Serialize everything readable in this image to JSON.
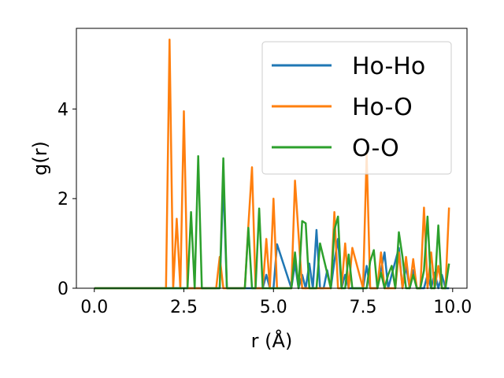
{
  "chart_data": {
    "type": "line",
    "xlabel": "r (Å)",
    "ylabel": "g(r)",
    "xlim": [
      -0.5,
      10.4
    ],
    "ylim": [
      0,
      5.8
    ],
    "xticks": [
      {
        "value": 0.0,
        "label": "0.0"
      },
      {
        "value": 2.5,
        "label": "2.5"
      },
      {
        "value": 5.0,
        "label": "5.0"
      },
      {
        "value": 7.5,
        "label": "7.5"
      },
      {
        "value": 10.0,
        "label": "10.0"
      }
    ],
    "yticks": [
      {
        "value": 0,
        "label": "0"
      },
      {
        "value": 2,
        "label": "2"
      },
      {
        "value": 4,
        "label": "4"
      }
    ],
    "grid": false,
    "legend_position": "top-right",
    "series": [
      {
        "name": "Ho-Ho",
        "color": "#1f77b4",
        "x": [
          0.0,
          3.5,
          3.6,
          3.7,
          4.7,
          4.8,
          4.9,
          5.0,
          5.1,
          5.5,
          5.6,
          5.7,
          5.8,
          5.9,
          6.0,
          6.1,
          6.2,
          6.3,
          6.4,
          6.5,
          6.6,
          6.7,
          6.8,
          6.9,
          7.0,
          7.1,
          7.2,
          7.5,
          7.6,
          7.7,
          7.9,
          8.0,
          8.1,
          8.2,
          8.3,
          8.5,
          8.6,
          8.7,
          8.8,
          8.9,
          9.0,
          9.2,
          9.3,
          9.4,
          9.5,
          9.6,
          9.7,
          9.8,
          9.9
        ],
        "y": [
          0.0,
          0.0,
          2.4,
          0.0,
          0.0,
          0.3,
          0.0,
          0.0,
          0.98,
          0.0,
          0.55,
          0.0,
          0.3,
          0.0,
          0.55,
          0.0,
          1.3,
          0.0,
          0.0,
          0.4,
          0.0,
          0.6,
          1.1,
          0.0,
          0.3,
          0.0,
          0.0,
          0.0,
          0.5,
          0.0,
          0.0,
          0.4,
          0.8,
          0.0,
          0.3,
          0.9,
          0.0,
          0.5,
          0.0,
          0.4,
          0.0,
          0.0,
          0.3,
          0.0,
          0.35,
          0.0,
          0.3,
          0.0,
          0.0
        ]
      },
      {
        "name": "Ho-O",
        "color": "#ff7f0e",
        "x": [
          0.0,
          2.0,
          2.1,
          2.2,
          2.3,
          2.4,
          2.5,
          2.6,
          3.4,
          3.5,
          3.6,
          4.1,
          4.2,
          4.3,
          4.4,
          4.5,
          4.6,
          4.7,
          4.8,
          4.9,
          5.0,
          5.1,
          5.4,
          5.5,
          5.6,
          5.7,
          5.8,
          6.4,
          6.5,
          6.6,
          6.7,
          6.8,
          6.9,
          7.0,
          7.1,
          7.2,
          7.5,
          7.6,
          7.7,
          7.9,
          8.0,
          8.1,
          8.3,
          8.4,
          8.5,
          8.6,
          8.7,
          8.8,
          8.9,
          9.0,
          9.1,
          9.2,
          9.3,
          9.4,
          9.5,
          9.6,
          9.7,
          9.8,
          9.9
        ],
        "y": [
          0.0,
          0.0,
          5.55,
          0.0,
          1.55,
          0.0,
          3.95,
          0.0,
          0.0,
          0.7,
          0.0,
          0.0,
          0.0,
          1.4,
          2.7,
          0.0,
          0.0,
          0.0,
          1.1,
          0.0,
          2.0,
          0.0,
          0.0,
          0.0,
          2.4,
          1.2,
          0.0,
          0.0,
          0.0,
          0.0,
          1.7,
          0.0,
          0.0,
          1.0,
          0.0,
          0.9,
          0.0,
          3.0,
          0.0,
          0.0,
          0.8,
          0.0,
          0.0,
          0.0,
          0.8,
          0.0,
          0.7,
          0.0,
          0.65,
          0.0,
          0.0,
          1.8,
          0.0,
          0.8,
          0.0,
          0.5,
          0.0,
          0.0,
          1.8
        ]
      },
      {
        "name": "O-O",
        "color": "#2ca02c",
        "x": [
          0.0,
          2.5,
          2.6,
          2.7,
          2.8,
          2.9,
          3.0,
          3.5,
          3.6,
          3.7,
          4.2,
          4.3,
          4.4,
          4.5,
          4.6,
          4.7,
          5.5,
          5.6,
          5.7,
          5.8,
          5.9,
          6.0,
          6.1,
          6.2,
          6.3,
          6.6,
          6.7,
          6.8,
          6.9,
          7.0,
          7.1,
          7.2,
          7.5,
          7.6,
          7.7,
          7.8,
          7.9,
          8.0,
          8.1,
          8.2,
          8.3,
          8.4,
          8.5,
          8.6,
          8.7,
          8.8,
          8.9,
          9.0,
          9.1,
          9.2,
          9.3,
          9.4,
          9.5,
          9.6,
          9.7,
          9.8,
          9.9
        ],
        "y": [
          0.0,
          0.0,
          0.0,
          1.7,
          0.0,
          2.95,
          0.0,
          0.0,
          2.9,
          0.0,
          0.0,
          1.35,
          0.0,
          0.0,
          1.78,
          0.0,
          0.0,
          0.8,
          0.0,
          1.5,
          1.45,
          0.0,
          0.0,
          0.0,
          1.0,
          0.0,
          1.3,
          1.6,
          0.0,
          0.0,
          0.75,
          0.0,
          0.0,
          0.0,
          0.6,
          0.85,
          0.0,
          0.35,
          0.0,
          0.3,
          0.5,
          0.0,
          1.25,
          0.7,
          0.0,
          0.0,
          0.3,
          0.0,
          0.0,
          0.4,
          1.6,
          0.0,
          0.0,
          1.4,
          0.0,
          0.0,
          0.55
        ]
      }
    ]
  }
}
